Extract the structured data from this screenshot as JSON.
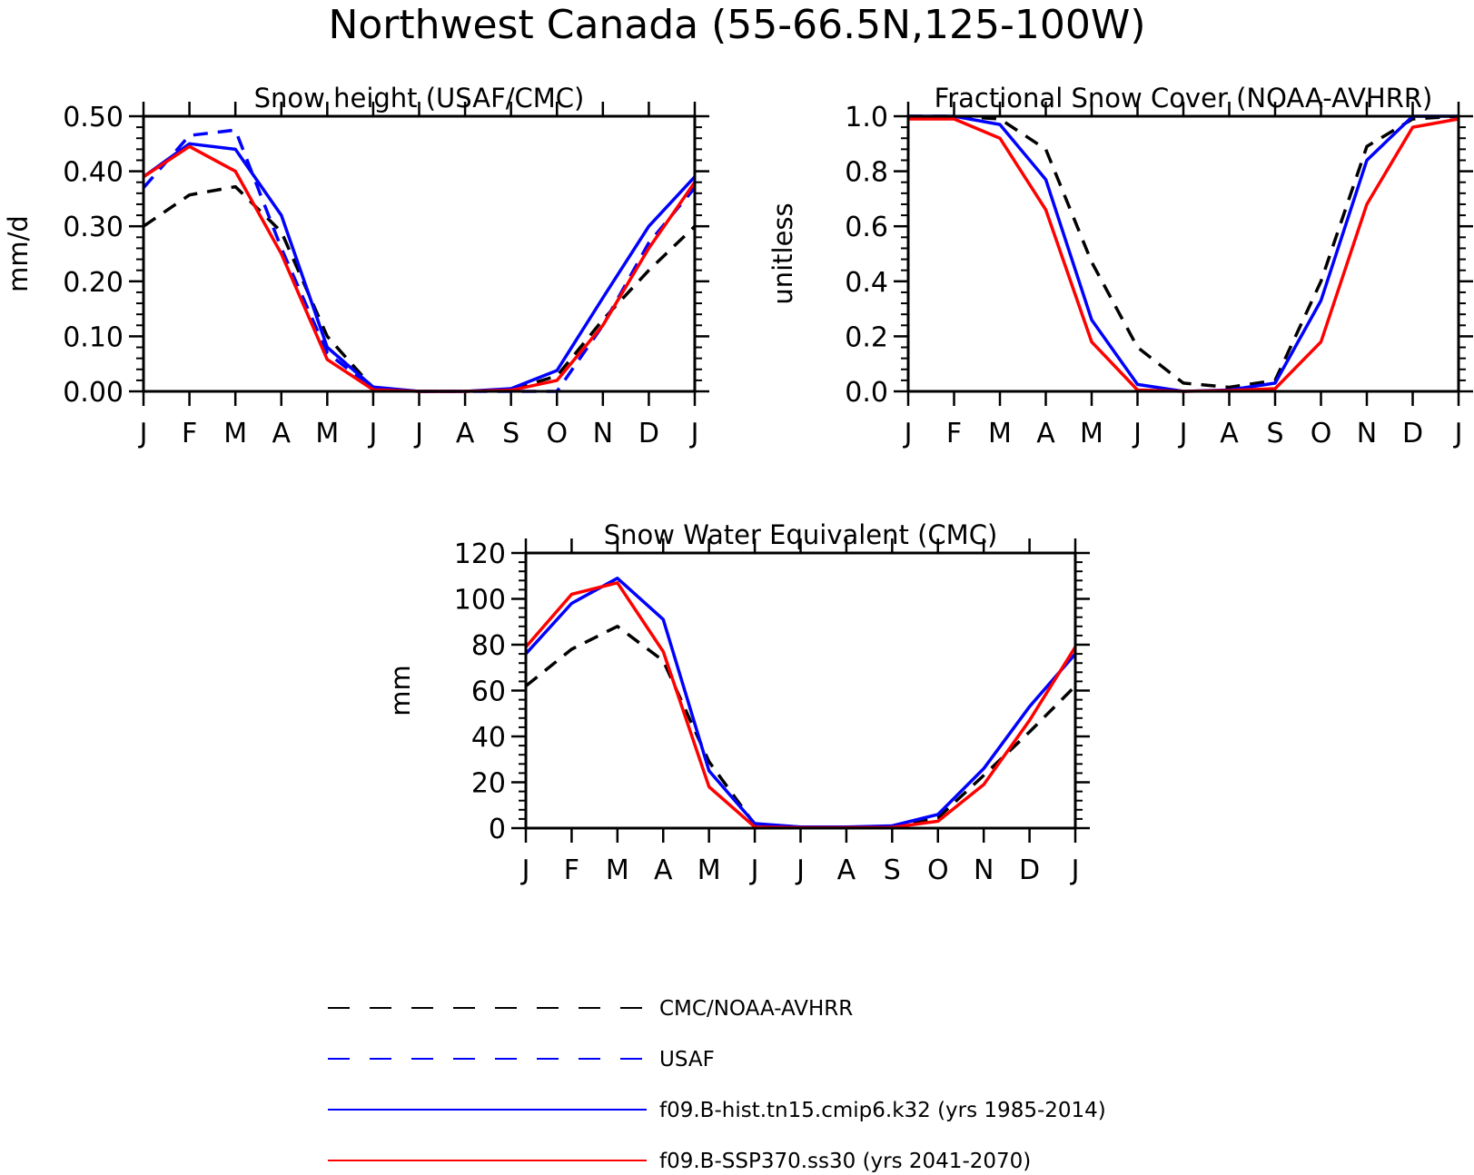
{
  "figure": {
    "title": "Northwest Canada (55-66.5N,125-100W)"
  },
  "styles": {
    "CMC/NOAA-AVHRR": {
      "color": "#000000",
      "dash": true
    },
    "USAF": {
      "color": "#0000ff",
      "dash": true
    },
    "f09.B-hist.tn15.cmip6.k32 (yrs 1985-2014)": {
      "color": "#0000ff",
      "dash": false
    },
    "f09.B-SSP370.ss30 (yrs 2041-2070)": {
      "color": "#ff0000",
      "dash": false
    }
  },
  "legend": [
    {
      "label": "CMC/NOAA-AVHRR",
      "style": "CMC/NOAA-AVHRR"
    },
    {
      "label": "USAF",
      "style": "USAF"
    },
    {
      "label": "f09.B-hist.tn15.cmip6.k32 (yrs 1985-2014)",
      "style": "f09.B-hist.tn15.cmip6.k32 (yrs 1985-2014)"
    },
    {
      "label": "f09.B-SSP370.ss30 (yrs 2041-2070)",
      "style": "f09.B-SSP370.ss30 (yrs 2041-2070)"
    }
  ],
  "chart_data": [
    {
      "type": "line",
      "title": "Snow height (USAF/CMC)",
      "ylabel": "mm/d",
      "xlabel": "",
      "categories": [
        "J",
        "F",
        "M",
        "A",
        "M",
        "J",
        "J",
        "A",
        "S",
        "O",
        "N",
        "D",
        "J"
      ],
      "ylim": [
        0,
        0.5
      ],
      "yticks": [
        "0.00",
        "0.10",
        "0.20",
        "0.30",
        "0.40",
        "0.50"
      ],
      "series": [
        {
          "name": "CMC/NOAA-AVHRR",
          "values": [
            0.3,
            0.357,
            0.372,
            0.29,
            0.1,
            0.006,
            0.0,
            0.0,
            0.003,
            0.028,
            0.13,
            0.22,
            0.3
          ]
        },
        {
          "name": "USAF",
          "values": [
            0.37,
            0.465,
            0.475,
            0.26,
            0.07,
            0.005,
            0.0,
            0.0,
            0.0,
            0.0,
            0.12,
            0.27,
            0.37
          ]
        },
        {
          "name": "f09.B-hist.tn15.cmip6.k32 (yrs 1985-2014)",
          "values": [
            0.39,
            0.45,
            0.44,
            0.32,
            0.08,
            0.008,
            0.0,
            0.0,
            0.005,
            0.038,
            0.17,
            0.3,
            0.39
          ]
        },
        {
          "name": "f09.B-SSP370.ss30 (yrs 2041-2070)",
          "values": [
            0.39,
            0.445,
            0.4,
            0.25,
            0.058,
            0.003,
            0.0,
            0.0,
            0.002,
            0.02,
            0.12,
            0.26,
            0.38
          ]
        }
      ]
    },
    {
      "type": "line",
      "title": "Fractional Snow Cover (NOAA-AVHRR)",
      "ylabel": "unitless",
      "xlabel": "",
      "categories": [
        "J",
        "F",
        "M",
        "A",
        "M",
        "J",
        "J",
        "A",
        "S",
        "O",
        "N",
        "D",
        "J"
      ],
      "ylim": [
        0,
        1.0
      ],
      "yticks": [
        "0.0",
        "0.2",
        "0.4",
        "0.6",
        "0.8",
        "1.0"
      ],
      "series": [
        {
          "name": "CMC/NOAA-AVHRR",
          "values": [
            1.0,
            1.0,
            0.99,
            0.88,
            0.47,
            0.16,
            0.03,
            0.015,
            0.04,
            0.4,
            0.89,
            0.99,
            1.0
          ]
        },
        {
          "name": "f09.B-hist.tn15.cmip6.k32 (yrs 1985-2014)",
          "values": [
            1.0,
            1.0,
            0.97,
            0.77,
            0.26,
            0.025,
            0.0,
            0.005,
            0.03,
            0.33,
            0.84,
            1.0,
            1.0
          ]
        },
        {
          "name": "f09.B-SSP370.ss30 (yrs 2041-2070)",
          "values": [
            0.99,
            0.99,
            0.92,
            0.66,
            0.18,
            0.005,
            0.0,
            0.003,
            0.01,
            0.18,
            0.68,
            0.96,
            0.99
          ]
        }
      ]
    },
    {
      "type": "line",
      "title": "Snow Water Equivalent (CMC)",
      "ylabel": "mm",
      "xlabel": "",
      "categories": [
        "J",
        "F",
        "M",
        "A",
        "M",
        "J",
        "J",
        "A",
        "S",
        "O",
        "N",
        "D",
        "J"
      ],
      "ylim": [
        0,
        120
      ],
      "yticks": [
        "0",
        "20",
        "40",
        "60",
        "80",
        "100",
        "120"
      ],
      "series": [
        {
          "name": "CMC/NOAA-AVHRR",
          "values": [
            62,
            78,
            88,
            73,
            29,
            1.5,
            0.2,
            0.2,
            0.5,
            4.5,
            23,
            42,
            62
          ]
        },
        {
          "name": "f09.B-hist.tn15.cmip6.k32 (yrs 1985-2014)",
          "values": [
            76,
            98,
            109,
            91,
            25,
            2,
            0.5,
            0.5,
            1,
            6,
            26,
            53,
            76
          ]
        },
        {
          "name": "f09.B-SSP370.ss30 (yrs 2041-2070)",
          "values": [
            79,
            102,
            107,
            77,
            18,
            0.5,
            0.2,
            0.2,
            0.3,
            3,
            19,
            47,
            79
          ]
        }
      ]
    }
  ]
}
